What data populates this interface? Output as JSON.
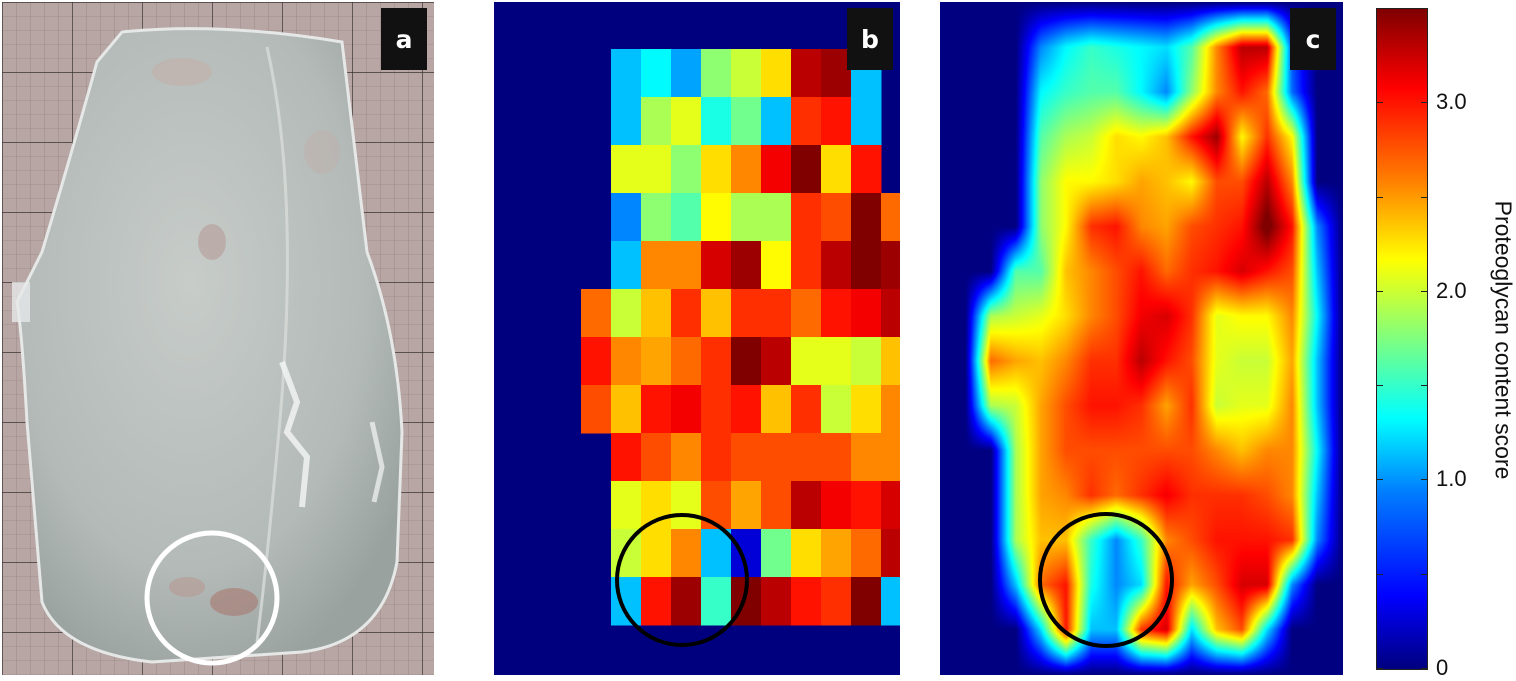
{
  "panels": {
    "a": {
      "label": "a"
    },
    "b": {
      "label": "b"
    },
    "c": {
      "label": "c"
    }
  },
  "colorbar": {
    "title": "Proteoglycan content score",
    "tick_labels": [
      "0",
      "1.0",
      "2.0",
      "3.0"
    ],
    "range": [
      0,
      3.5
    ],
    "colormap": "jet"
  },
  "grid_b": [
    [
      null,
      null,
      null,
      1.1,
      1.3,
      1.0,
      1.8,
      2.0,
      2.3,
      3.3,
      3.4,
      1.1,
      null,
      null
    ],
    [
      null,
      null,
      null,
      1.1,
      1.9,
      2.1,
      1.4,
      1.7,
      1.1,
      2.9,
      3.0,
      1.1,
      null,
      null
    ],
    [
      null,
      null,
      null,
      2.1,
      2.1,
      1.8,
      2.3,
      2.6,
      3.1,
      3.5,
      2.3,
      3.0,
      null,
      null
    ],
    [
      null,
      null,
      null,
      0.9,
      1.8,
      1.6,
      2.2,
      1.9,
      1.9,
      2.9,
      2.8,
      3.6,
      2.7,
      null
    ],
    [
      null,
      null,
      null,
      1.1,
      2.6,
      2.6,
      3.2,
      3.4,
      2.2,
      2.9,
      3.3,
      3.9,
      3.4,
      1.1
    ],
    [
      null,
      null,
      2.7,
      2.0,
      2.4,
      2.9,
      2.4,
      2.9,
      2.9,
      2.7,
      3.0,
      3.1,
      3.3,
      2.8
    ],
    [
      null,
      null,
      3.0,
      2.6,
      2.5,
      2.7,
      2.9,
      3.6,
      3.3,
      2.1,
      2.1,
      2.0,
      2.4,
      2.3
    ],
    [
      null,
      null,
      2.8,
      2.4,
      3.0,
      3.1,
      2.9,
      3.0,
      2.4,
      2.9,
      2.0,
      2.3,
      2.6,
      2.4
    ],
    [
      null,
      null,
      null,
      3.0,
      2.8,
      2.6,
      2.9,
      2.8,
      2.8,
      2.8,
      2.8,
      2.6,
      2.6,
      null
    ],
    [
      null,
      null,
      null,
      2.1,
      2.3,
      2.1,
      2.8,
      2.5,
      2.8,
      3.3,
      3.1,
      3.0,
      3.2,
      null
    ],
    [
      null,
      null,
      null,
      2.0,
      2.3,
      2.6,
      1.1,
      0.3,
      1.7,
      2.3,
      2.5,
      2.7,
      3.3,
      null
    ],
    [
      null,
      null,
      null,
      1.1,
      3.0,
      3.4,
      1.5,
      3.7,
      3.3,
      3.0,
      2.9,
      3.5,
      1.1,
      null
    ]
  ],
  "grid_c": [
    [
      0,
      0,
      0,
      0,
      0,
      0,
      0,
      0,
      0,
      0,
      0,
      0,
      0,
      0,
      0,
      0,
      0
    ],
    [
      0,
      0,
      0,
      0,
      0.9,
      1.3,
      1.5,
      1.4,
      1.3,
      1.2,
      1.6,
      2.6,
      3.3,
      3.3,
      0.7,
      0,
      0
    ],
    [
      0,
      0,
      0,
      0,
      1.3,
      1.5,
      1.6,
      1.6,
      1.3,
      0.9,
      1.8,
      2.6,
      3.0,
      2.7,
      0.8,
      0,
      0
    ],
    [
      0,
      0,
      0,
      0,
      1.6,
      1.9,
      2.0,
      2.3,
      2.2,
      2.4,
      3.0,
      3.4,
      2.2,
      2.9,
      2.2,
      0,
      0
    ],
    [
      0,
      0,
      0,
      0,
      1.8,
      2.2,
      2.2,
      2.3,
      2.5,
      2.4,
      2.2,
      2.8,
      2.8,
      3.3,
      2.6,
      0,
      0
    ],
    [
      0,
      0,
      0,
      0,
      1.8,
      2.2,
      2.9,
      3.0,
      2.6,
      2.5,
      2.8,
      2.9,
      3.0,
      3.6,
      3.0,
      0.9,
      0
    ],
    [
      0,
      0,
      0,
      1.6,
      1.6,
      2.4,
      2.6,
      2.8,
      3.0,
      2.7,
      2.9,
      3.0,
      3.2,
      3.0,
      2.8,
      1.1,
      0
    ],
    [
      0,
      0,
      1.9,
      2.0,
      2.1,
      2.3,
      2.6,
      2.8,
      3.1,
      3.2,
      2.9,
      2.1,
      2.2,
      2.2,
      2.6,
      1.3,
      0
    ],
    [
      0,
      0,
      2.7,
      2.5,
      2.4,
      2.6,
      2.9,
      2.9,
      3.3,
      3.0,
      2.8,
      2.1,
      2.0,
      2.0,
      2.5,
      1.1,
      0
    ],
    [
      0,
      0,
      1.9,
      2.0,
      2.5,
      2.8,
      3.0,
      3.0,
      2.9,
      2.5,
      2.9,
      2.0,
      2.1,
      2.1,
      2.6,
      1.1,
      0
    ],
    [
      0,
      0,
      0,
      1.9,
      2.5,
      2.8,
      2.8,
      2.8,
      2.8,
      2.8,
      2.8,
      2.6,
      2.4,
      2.6,
      2.6,
      1.3,
      0
    ],
    [
      0,
      0,
      0,
      1.9,
      2.5,
      2.6,
      2.9,
      2.7,
      2.9,
      3.1,
      2.9,
      2.9,
      2.9,
      2.8,
      2.6,
      1.1,
      0
    ],
    [
      0,
      0,
      0,
      1.9,
      2.4,
      2.4,
      1.5,
      0.9,
      1.5,
      2.6,
      2.8,
      3.0,
      3.0,
      3.0,
      2.9,
      0.9,
      0
    ],
    [
      0,
      0,
      0,
      1.1,
      2.7,
      3.0,
      1.4,
      0.9,
      1.2,
      3.0,
      2.5,
      2.8,
      3.2,
      3.2,
      0.9,
      0,
      0
    ],
    [
      0,
      0,
      0,
      0,
      1.2,
      3.0,
      1.1,
      1.1,
      2.9,
      3.2,
      1.2,
      2.4,
      2.8,
      1.2,
      0,
      0,
      0
    ],
    [
      0,
      0,
      0,
      0,
      0,
      0,
      0,
      0,
      0,
      0,
      0,
      0,
      0,
      0,
      0,
      0,
      0
    ]
  ]
}
